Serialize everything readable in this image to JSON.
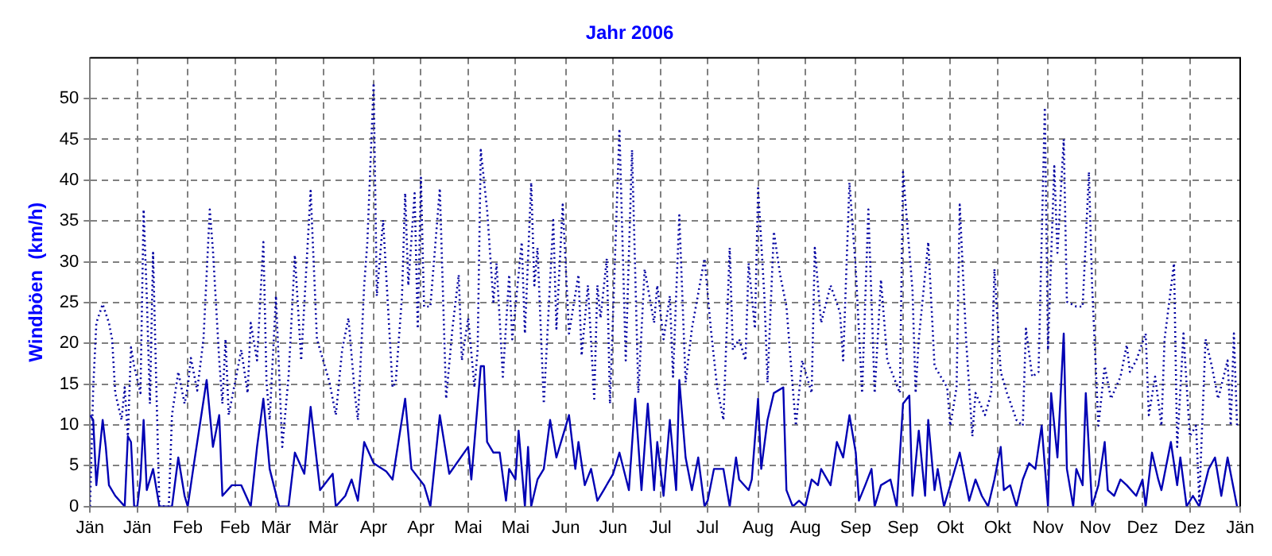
{
  "chart_data": {
    "type": "line",
    "title": "Jahr 2006",
    "ylabel": "Windböen  (km/h)",
    "xlim": [
      "2006-01-01",
      "2007-01-01"
    ],
    "xticks": [
      {
        "value": "2006-01-01",
        "label": "Jän"
      },
      {
        "value": "2006-01-16",
        "label": "Jän"
      },
      {
        "value": "2006-02-01",
        "label": "Feb"
      },
      {
        "value": "2006-02-16",
        "label": "Feb"
      },
      {
        "value": "2006-03-01",
        "label": "Mär"
      },
      {
        "value": "2006-03-16",
        "label": "Mär"
      },
      {
        "value": "2006-04-01",
        "label": "Apr"
      },
      {
        "value": "2006-04-16",
        "label": "Apr"
      },
      {
        "value": "2006-05-01",
        "label": "Mai"
      },
      {
        "value": "2006-05-16",
        "label": "Mai"
      },
      {
        "value": "2006-06-01",
        "label": "Jun"
      },
      {
        "value": "2006-06-16",
        "label": "Jun"
      },
      {
        "value": "2006-07-01",
        "label": "Jul"
      },
      {
        "value": "2006-07-16",
        "label": "Jul"
      },
      {
        "value": "2006-08-01",
        "label": "Aug"
      },
      {
        "value": "2006-08-16",
        "label": "Aug"
      },
      {
        "value": "2006-09-01",
        "label": "Sep"
      },
      {
        "value": "2006-09-16",
        "label": "Sep"
      },
      {
        "value": "2006-10-01",
        "label": "Okt"
      },
      {
        "value": "2006-10-16",
        "label": "Okt"
      },
      {
        "value": "2006-11-01",
        "label": "Nov"
      },
      {
        "value": "2006-11-16",
        "label": "Nov"
      },
      {
        "value": "2006-12-01",
        "label": "Dez"
      },
      {
        "value": "2006-12-16",
        "label": "Dez"
      },
      {
        "value": "2007-01-01",
        "label": "Jän"
      }
    ],
    "ylim": [
      0,
      55
    ],
    "yticks": [
      0,
      5,
      10,
      15,
      20,
      25,
      30,
      35,
      40,
      45,
      50
    ],
    "grid": true,
    "legend": false,
    "marker": "none",
    "series": [
      {
        "color": "#0000a0",
        "line_style": "dotted",
        "x": [
          "2006-01-01",
          "2006-01-02",
          "2006-01-03",
          "2006-01-05",
          "2006-01-07",
          "2006-01-08",
          "2006-01-09",
          "2006-01-11",
          "2006-01-12",
          "2006-01-13",
          "2006-01-14",
          "2006-01-15",
          "2006-01-17",
          "2006-01-18",
          "2006-01-19",
          "2006-01-20",
          "2006-01-21",
          "2006-01-22",
          "2006-01-23",
          "2006-01-26",
          "2006-01-27",
          "2006-01-29",
          "2006-01-31",
          "2006-02-01",
          "2006-02-02",
          "2006-02-04",
          "2006-02-06",
          "2006-02-08",
          "2006-02-09",
          "2006-02-11",
          "2006-02-12",
          "2006-02-13",
          "2006-02-14",
          "2006-02-16",
          "2006-02-18",
          "2006-02-20",
          "2006-02-21",
          "2006-02-23",
          "2006-02-25",
          "2006-02-26",
          "2006-02-27",
          "2006-03-01",
          "2006-03-03",
          "2006-03-05",
          "2006-03-07",
          "2006-03-09",
          "2006-03-12",
          "2006-03-14",
          "2006-03-15",
          "2006-03-18",
          "2006-03-20",
          "2006-03-22",
          "2006-03-24",
          "2006-03-26",
          "2006-03-27",
          "2006-03-29",
          "2006-03-30",
          "2006-04-01",
          "2006-04-02",
          "2006-04-04",
          "2006-04-07",
          "2006-04-08",
          "2006-04-10",
          "2006-04-11",
          "2006-04-12",
          "2006-04-14",
          "2006-04-15",
          "2006-04-16",
          "2006-04-17",
          "2006-04-19",
          "2006-04-22",
          "2006-04-24",
          "2006-04-26",
          "2006-04-28",
          "2006-04-29",
          "2006-05-01",
          "2006-05-03",
          "2006-05-04",
          "2006-05-05",
          "2006-05-07",
          "2006-05-09",
          "2006-05-10",
          "2006-05-12",
          "2006-05-14",
          "2006-05-15",
          "2006-05-18",
          "2006-05-19",
          "2006-05-21",
          "2006-05-22",
          "2006-05-23",
          "2006-05-25",
          "2006-05-28",
          "2006-05-29",
          "2006-05-31",
          "2006-06-02",
          "2006-06-05",
          "2006-06-06",
          "2006-06-08",
          "2006-06-10",
          "2006-06-11",
          "2006-06-12",
          "2006-06-14",
          "2006-06-15",
          "2006-06-18",
          "2006-06-20",
          "2006-06-22",
          "2006-06-24",
          "2006-06-26",
          "2006-06-29",
          "2006-06-30",
          "2006-07-02",
          "2006-07-04",
          "2006-07-05",
          "2006-07-07",
          "2006-07-09",
          "2006-07-11",
          "2006-07-15",
          "2006-07-17",
          "2006-07-19",
          "2006-07-21",
          "2006-07-23",
          "2006-07-24",
          "2006-07-26",
          "2006-07-28",
          "2006-07-29",
          "2006-07-31",
          "2006-08-01",
          "2006-08-03",
          "2006-08-04",
          "2006-08-06",
          "2006-08-08",
          "2006-08-10",
          "2006-08-12",
          "2006-08-13",
          "2006-08-15",
          "2006-08-18",
          "2006-08-19",
          "2006-08-21",
          "2006-08-24",
          "2006-08-27",
          "2006-08-28",
          "2006-08-30",
          "2006-09-01",
          "2006-09-03",
          "2006-09-05",
          "2006-09-07",
          "2006-09-09",
          "2006-09-11",
          "2006-09-13",
          "2006-09-15",
          "2006-09-16",
          "2006-09-19",
          "2006-09-20",
          "2006-09-21",
          "2006-09-24",
          "2006-09-26",
          "2006-09-30",
          "2006-10-01",
          "2006-10-03",
          "2006-10-04",
          "2006-10-06",
          "2006-10-08",
          "2006-10-09",
          "2006-10-12",
          "2006-10-14",
          "2006-10-15",
          "2006-10-17",
          "2006-10-19",
          "2006-10-22",
          "2006-10-24",
          "2006-10-25",
          "2006-10-27",
          "2006-10-29",
          "2006-10-31",
          "2006-11-01",
          "2006-11-03",
          "2006-11-04",
          "2006-11-06",
          "2006-11-07",
          "2006-11-10",
          "2006-11-12",
          "2006-11-14",
          "2006-11-15",
          "2006-11-17",
          "2006-11-19",
          "2006-11-21",
          "2006-11-24",
          "2006-11-26",
          "2006-11-27",
          "2006-11-29",
          "2006-12-02",
          "2006-12-03",
          "2006-12-05",
          "2006-12-07",
          "2006-12-08",
          "2006-12-11",
          "2006-12-12",
          "2006-12-14",
          "2006-12-16",
          "2006-12-18",
          "2006-12-19",
          "2006-12-21",
          "2006-12-23",
          "2006-12-25",
          "2006-12-28",
          "2006-12-29",
          "2006-12-30",
          "2006-12-31"
        ],
        "values": [
          0,
          14.5,
          22.5,
          24.8,
          22.5,
          20.5,
          13.9,
          10.6,
          14.6,
          8.6,
          19.5,
          17.2,
          13.9,
          36.4,
          25.8,
          12.6,
          31.1,
          15.2,
          0,
          0,
          11.2,
          16.5,
          12.6,
          14.6,
          18.2,
          14.2,
          20.5,
          36.4,
          31.4,
          17.9,
          12.6,
          20.5,
          11.2,
          15.2,
          19.2,
          13.9,
          22.5,
          17.9,
          32.4,
          15.2,
          10.6,
          25.8,
          7.3,
          15.9,
          30.8,
          17.9,
          38.7,
          20.5,
          19.2,
          15.2,
          11.2,
          19.2,
          23.1,
          13.9,
          10.6,
          27.1,
          32.4,
          51.9,
          25.8,
          35.1,
          14.6,
          15.2,
          25.8,
          38.4,
          27.1,
          38.4,
          21.8,
          40.3,
          24.5,
          24.5,
          39.0,
          13.2,
          21.8,
          28.4,
          17.9,
          23.1,
          14.6,
          19.2,
          43.7,
          36.4,
          25.1,
          29.8,
          15.9,
          28.4,
          20.5,
          32.4,
          21.2,
          39.7,
          27.1,
          31.7,
          12.6,
          35.1,
          21.8,
          37.0,
          21.2,
          28.4,
          18.5,
          27.1,
          13.2,
          27.1,
          23.1,
          30.4,
          12.6,
          46.3,
          17.9,
          43.7,
          13.9,
          29.1,
          22.5,
          27.1,
          20.5,
          25.8,
          15.9,
          35.7,
          15.2,
          21.8,
          30.4,
          21.8,
          14.6,
          10.6,
          31.7,
          19.2,
          20.5,
          17.9,
          29.8,
          21.8,
          39.0,
          25.8,
          15.2,
          33.7,
          28.4,
          24.5,
          14.6,
          9.9,
          17.9,
          13.9,
          31.7,
          22.5,
          27.1,
          23.8,
          17.9,
          39.7,
          29.1,
          13.9,
          36.4,
          13.9,
          27.8,
          17.9,
          15.9,
          13.9,
          41.0,
          26.5,
          13.9,
          20.5,
          32.4,
          17.2,
          14.6,
          9.9,
          14.6,
          37.0,
          20.5,
          8.6,
          13.9,
          11.2,
          13.9,
          29.1,
          16.5,
          13.9,
          10.6,
          9.9,
          21.8,
          15.9,
          16.5,
          48.9,
          19.2,
          41.7,
          31.1,
          45.0,
          25.1,
          24.5,
          24.5,
          41.0,
          27.1,
          9.9,
          17.2,
          13.2,
          15.9,
          19.8,
          16.5,
          17.9,
          21.2,
          11.2,
          15.9,
          9.9,
          20.5,
          29.8,
          7.3,
          21.2,
          8.6,
          9.9,
          0.7,
          20.5,
          17.2,
          13.2,
          17.9,
          9.9,
          21.2,
          9.9
        ]
      },
      {
        "color": "#0000b4",
        "line_style": "solid",
        "x": [
          "2006-01-01",
          "2006-01-02",
          "2006-01-03",
          "2006-01-05",
          "2006-01-06",
          "2006-01-07",
          "2006-01-09",
          "2006-01-12",
          "2006-01-13",
          "2006-01-14",
          "2006-01-15",
          "2006-01-16",
          "2006-01-17",
          "2006-01-18",
          "2006-01-19",
          "2006-01-21",
          "2006-01-23",
          "2006-01-27",
          "2006-01-29",
          "2006-01-31",
          "2006-02-01",
          "2006-02-03",
          "2006-02-07",
          "2006-02-09",
          "2006-02-11",
          "2006-02-12",
          "2006-02-15",
          "2006-02-18",
          "2006-02-21",
          "2006-02-23",
          "2006-02-25",
          "2006-02-27",
          "2006-03-02",
          "2006-03-05",
          "2006-03-07",
          "2006-03-10",
          "2006-03-12",
          "2006-03-15",
          "2006-03-19",
          "2006-03-20",
          "2006-03-23",
          "2006-03-25",
          "2006-03-27",
          "2006-03-29",
          "2006-04-01",
          "2006-04-05",
          "2006-04-07",
          "2006-04-11",
          "2006-04-13",
          "2006-04-17",
          "2006-04-19",
          "2006-04-22",
          "2006-04-25",
          "2006-05-01",
          "2006-05-02",
          "2006-05-05",
          "2006-05-06",
          "2006-05-07",
          "2006-05-09",
          "2006-05-11",
          "2006-05-13",
          "2006-05-14",
          "2006-05-16",
          "2006-05-17",
          "2006-05-19",
          "2006-05-20",
          "2006-05-21",
          "2006-05-23",
          "2006-05-25",
          "2006-05-27",
          "2006-05-29",
          "2006-06-02",
          "2006-06-04",
          "2006-06-05",
          "2006-06-07",
          "2006-06-09",
          "2006-06-11",
          "2006-06-13",
          "2006-06-16",
          "2006-06-18",
          "2006-06-21",
          "2006-06-23",
          "2006-06-25",
          "2006-06-27",
          "2006-06-29",
          "2006-06-30",
          "2006-07-02",
          "2006-07-04",
          "2006-07-06",
          "2006-07-07",
          "2006-07-09",
          "2006-07-11",
          "2006-07-13",
          "2006-07-15",
          "2006-07-16",
          "2006-07-18",
          "2006-07-21",
          "2006-07-23",
          "2006-07-25",
          "2006-07-26",
          "2006-07-29",
          "2006-07-30",
          "2006-08-01",
          "2006-08-02",
          "2006-08-04",
          "2006-08-06",
          "2006-08-09",
          "2006-08-10",
          "2006-08-12",
          "2006-08-14",
          "2006-08-16",
          "2006-08-18",
          "2006-08-20",
          "2006-08-21",
          "2006-08-24",
          "2006-08-26",
          "2006-08-28",
          "2006-08-30",
          "2006-09-01",
          "2006-09-02",
          "2006-09-04",
          "2006-09-06",
          "2006-09-07",
          "2006-09-09",
          "2006-09-12",
          "2006-09-14",
          "2006-09-16",
          "2006-09-18",
          "2006-09-19",
          "2006-09-21",
          "2006-09-23",
          "2006-09-24",
          "2006-09-26",
          "2006-09-27",
          "2006-09-29",
          "2006-10-01",
          "2006-10-04",
          "2006-10-07",
          "2006-10-09",
          "2006-10-11",
          "2006-10-13",
          "2006-10-15",
          "2006-10-17",
          "2006-10-18",
          "2006-10-20",
          "2006-10-22",
          "2006-10-24",
          "2006-10-26",
          "2006-10-28",
          "2006-10-30",
          "2006-11-01",
          "2006-11-02",
          "2006-11-04",
          "2006-11-06",
          "2006-11-07",
          "2006-11-09",
          "2006-11-10",
          "2006-11-12",
          "2006-11-13",
          "2006-11-15",
          "2006-11-17",
          "2006-11-19",
          "2006-11-20",
          "2006-11-22",
          "2006-11-24",
          "2006-11-26",
          "2006-11-29",
          "2006-12-01",
          "2006-12-02",
          "2006-12-04",
          "2006-12-06",
          "2006-12-07",
          "2006-12-10",
          "2006-12-12",
          "2006-12-13",
          "2006-12-15",
          "2006-12-17",
          "2006-12-19",
          "2006-12-22",
          "2006-12-24",
          "2006-12-26",
          "2006-12-28",
          "2006-12-30",
          "2006-12-31"
        ],
        "values": [
          11.2,
          10.6,
          2.6,
          10.6,
          7.3,
          2.6,
          1.3,
          0,
          8.6,
          7.9,
          0,
          0,
          3.3,
          10.6,
          2.0,
          4.6,
          0,
          0,
          6.0,
          1.3,
          0,
          5.3,
          15.5,
          7.3,
          11.2,
          1.3,
          2.6,
          2.6,
          0,
          7.3,
          13.2,
          4.6,
          0,
          0,
          6.6,
          4.0,
          12.2,
          2.0,
          4.0,
          0,
          1.3,
          3.3,
          0.7,
          7.9,
          5.3,
          4.3,
          3.3,
          13.2,
          4.6,
          2.6,
          0,
          11.2,
          4.0,
          7.3,
          3.3,
          17.2,
          17.2,
          7.9,
          6.6,
          6.6,
          0.7,
          4.6,
          3.3,
          9.3,
          0,
          7.3,
          0,
          3.3,
          4.6,
          10.6,
          6.0,
          11.2,
          4.6,
          7.9,
          2.6,
          4.6,
          0.7,
          2.0,
          4.0,
          6.6,
          2.0,
          13.2,
          2.0,
          12.6,
          2.0,
          7.9,
          1.3,
          10.6,
          2.0,
          15.5,
          6.0,
          2.0,
          6.0,
          0,
          0.7,
          4.6,
          4.6,
          0,
          6.0,
          3.3,
          2.0,
          3.3,
          13.2,
          4.6,
          10.6,
          13.9,
          14.6,
          2.0,
          0,
          0.7,
          0,
          3.3,
          2.6,
          4.6,
          2.6,
          7.9,
          6.0,
          11.2,
          6.6,
          0.7,
          2.6,
          4.6,
          0,
          2.6,
          3.3,
          0,
          12.6,
          13.6,
          1.3,
          9.3,
          1.3,
          10.6,
          2.0,
          4.6,
          0,
          2.6,
          6.6,
          0.7,
          3.3,
          1.3,
          0,
          3.3,
          7.3,
          2.0,
          2.6,
          0,
          3.3,
          5.3,
          4.6,
          9.9,
          0,
          13.9,
          6.0,
          21.2,
          4.6,
          0,
          4.6,
          2.6,
          13.9,
          0,
          2.6,
          7.9,
          2.0,
          1.3,
          3.3,
          2.6,
          1.3,
          3.3,
          0,
          6.6,
          3.3,
          2.0,
          7.9,
          2.6,
          6.0,
          0,
          1.3,
          0,
          4.6,
          6.0,
          1.3,
          6.0,
          2.0,
          0
        ]
      }
    ]
  }
}
